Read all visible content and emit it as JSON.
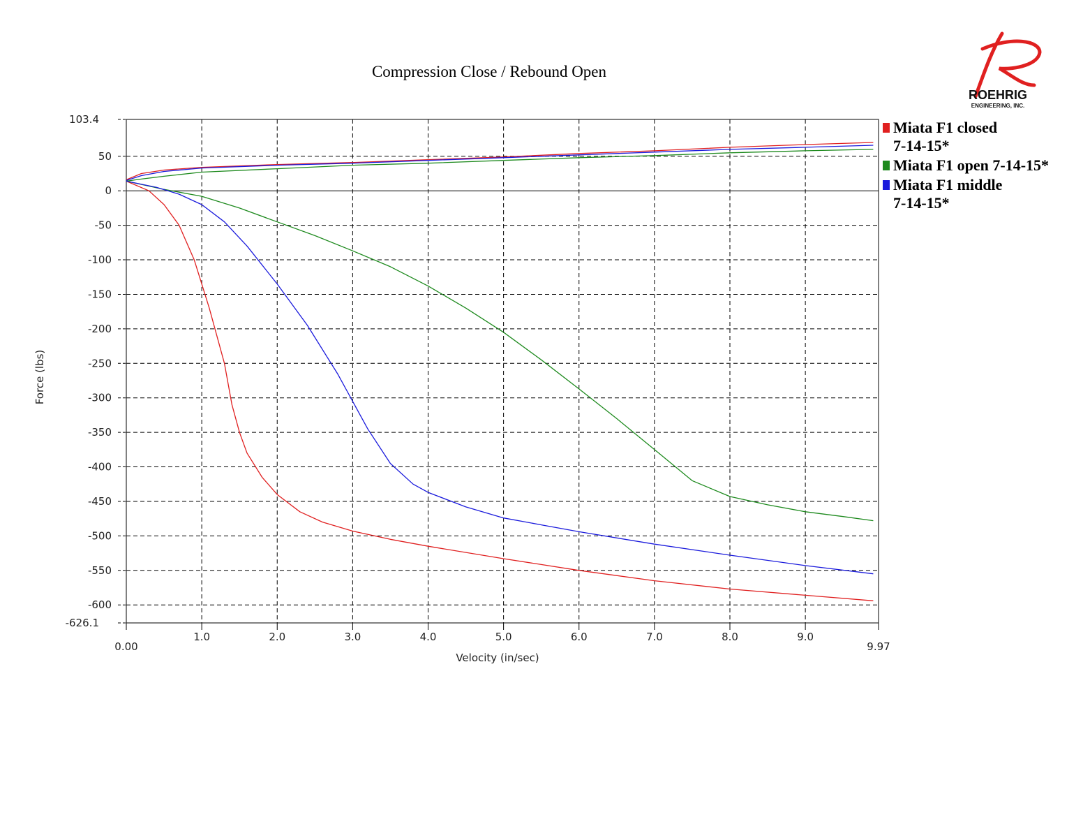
{
  "chart_data": {
    "type": "line",
    "title": "Compression Close / Rebound Open",
    "xlabel": "Velocity (in/sec)",
    "ylabel": "Force (lbs)",
    "xlim": [
      0,
      9.97
    ],
    "ylim": [
      -626.1,
      103.4
    ],
    "x_ticks": [
      "0.00",
      "1.0",
      "2.0",
      "3.0",
      "4.0",
      "5.0",
      "6.0",
      "7.0",
      "8.0",
      "9.0",
      "9.97"
    ],
    "x_tick_values": [
      0,
      1,
      2,
      3,
      4,
      5,
      6,
      7,
      8,
      9,
      9.97
    ],
    "y_ticks": [
      "103.4",
      "50",
      "0",
      "-50",
      "-100",
      "-150",
      "-200",
      "-250",
      "-300",
      "-350",
      "-400",
      "-450",
      "-500",
      "-550",
      "-600",
      "-626.1"
    ],
    "y_tick_values": [
      103.4,
      50,
      0,
      -50,
      -100,
      -150,
      -200,
      -250,
      -300,
      -350,
      -400,
      -450,
      -500,
      -550,
      -600,
      -626.1
    ],
    "grid": true,
    "legend_position": "right",
    "series": [
      {
        "name": "Miata F1 closed 7-14-15*",
        "color": "#e02020",
        "rebound": {
          "x": [
            0,
            0.2,
            0.5,
            1.0,
            2.0,
            3.0,
            4.0,
            5.0,
            6.0,
            7.0,
            8.0,
            9.0,
            9.9
          ],
          "y": [
            16,
            25,
            30,
            34,
            38,
            41,
            45,
            49,
            54,
            58,
            63,
            67,
            70
          ]
        },
        "compression": {
          "x": [
            0,
            0.3,
            0.5,
            0.7,
            0.9,
            1.1,
            1.3,
            1.4,
            1.5,
            1.6,
            1.8,
            2.0,
            2.3,
            2.6,
            3.0,
            3.5,
            4.0,
            5.0,
            6.0,
            7.0,
            8.0,
            9.0,
            9.9
          ],
          "y": [
            14,
            0,
            -20,
            -50,
            -100,
            -170,
            -250,
            -310,
            -350,
            -380,
            -415,
            -440,
            -465,
            -480,
            -493,
            -505,
            -515,
            -533,
            -550,
            -565,
            -577,
            -586,
            -594
          ]
        }
      },
      {
        "name": "Miata F1 open 7-14-15*",
        "color": "#1e8a1e",
        "rebound": {
          "x": [
            0,
            0.2,
            0.5,
            1.0,
            2.0,
            3.0,
            4.0,
            5.0,
            6.0,
            7.0,
            8.0,
            9.0,
            9.9
          ],
          "y": [
            14,
            17,
            21,
            27,
            32,
            37,
            40,
            44,
            48,
            51,
            55,
            58,
            60
          ]
        },
        "compression": {
          "x": [
            0,
            0.5,
            1.0,
            1.5,
            2.0,
            2.5,
            3.0,
            3.5,
            4.0,
            4.5,
            5.0,
            5.5,
            6.0,
            6.5,
            7.0,
            7.5,
            8.0,
            8.5,
            9.0,
            9.5,
            9.9
          ],
          "y": [
            14,
            2,
            -8,
            -25,
            -45,
            -65,
            -87,
            -110,
            -138,
            -170,
            -205,
            -245,
            -287,
            -330,
            -375,
            -420,
            -443,
            -455,
            -465,
            -472,
            -478
          ]
        }
      },
      {
        "name": "Miata F1 middle 7-14-15*",
        "color": "#1a1adc",
        "rebound": {
          "x": [
            0,
            0.2,
            0.5,
            1.0,
            2.0,
            3.0,
            4.0,
            5.0,
            6.0,
            7.0,
            8.0,
            9.0,
            9.9
          ],
          "y": [
            15,
            22,
            28,
            33,
            37,
            40,
            44,
            48,
            52,
            56,
            60,
            63,
            66
          ]
        },
        "compression": {
          "x": [
            0,
            0.4,
            0.7,
            1.0,
            1.3,
            1.6,
            2.0,
            2.4,
            2.8,
            3.2,
            3.5,
            3.8,
            4.0,
            4.5,
            5.0,
            5.5,
            6.0,
            7.0,
            8.0,
            9.0,
            9.9
          ],
          "y": [
            14,
            5,
            -5,
            -20,
            -45,
            -80,
            -135,
            -195,
            -265,
            -345,
            -395,
            -425,
            -437,
            -458,
            -474,
            -484,
            -494,
            -512,
            -528,
            -543,
            -555
          ]
        }
      }
    ]
  },
  "logo": {
    "name": "ROEHRIG",
    "sub": "ENGINEERING, INC.",
    "color": "#e02020"
  },
  "legend": {
    "entries": [
      {
        "lines": [
          "Miata F1 closed",
          "7-14-15*"
        ],
        "color": "#e02020"
      },
      {
        "lines": [
          "Miata F1 open 7-14-15*"
        ],
        "color": "#1e8a1e"
      },
      {
        "lines": [
          "Miata F1 middle",
          "7-14-15*"
        ],
        "color": "#1a1adc"
      }
    ]
  }
}
